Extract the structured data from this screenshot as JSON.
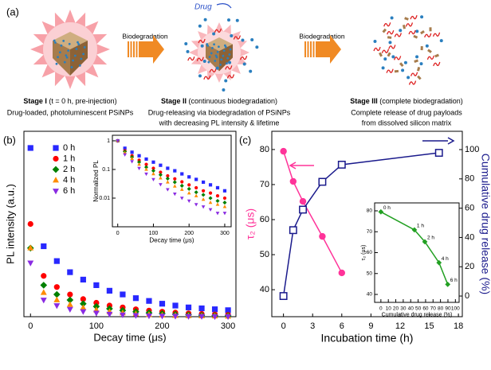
{
  "diagram": {
    "label": "(a)",
    "drug": "Drug",
    "arrows": [
      "Biodegradation",
      "Biodegradation"
    ],
    "stages": [
      {
        "name": "Stage I",
        "detail": "(t = 0 h, pre-injection)",
        "lines": [
          "Drug-loaded, photoluminescent PSiNPs"
        ]
      },
      {
        "name": "Stage II",
        "detail": "(continuous biodegradation)",
        "lines": [
          "Drug-releasing via biodegradation of PSiNPs",
          "with decreasing PL intensity & lifetime"
        ]
      },
      {
        "name": "Stage III",
        "detail": "(complete biodegradation)",
        "lines": [
          "Complete release of drug payloads",
          "from dissolved silicon matrix"
        ]
      }
    ]
  },
  "chart_data": [
    {
      "type": "scatter",
      "panel": "(b)",
      "xlabel": "Decay time (μs)",
      "ylabel": "PL intensity (a.u.)",
      "x": [
        0,
        20,
        40,
        60,
        80,
        100,
        120,
        140,
        160,
        180,
        200,
        220,
        240,
        260,
        280,
        300
      ],
      "xlim": [
        -10,
        312
      ],
      "xticks": [
        0,
        100,
        200,
        300
      ],
      "ylim": [
        0,
        1
      ],
      "legend": "upper left",
      "series": [
        {
          "name": "0 h",
          "color": "#2828ff",
          "marker": "square",
          "values": [
            0.91,
            0.38,
            0.3,
            0.24,
            0.2,
            0.17,
            0.14,
            0.12,
            0.1,
            0.085,
            0.07,
            0.06,
            0.05,
            0.045,
            0.04,
            0.035
          ]
        },
        {
          "name": "1 h",
          "color": "#ff0000",
          "marker": "circle",
          "values": [
            0.5,
            0.22,
            0.16,
            0.12,
            0.095,
            0.075,
            0.06,
            0.05,
            0.04,
            0.033,
            0.027,
            0.022,
            0.018,
            0.015,
            0.012,
            0.01
          ]
        },
        {
          "name": "2 h",
          "color": "#008000",
          "marker": "diamond",
          "values": [
            0.37,
            0.17,
            0.12,
            0.09,
            0.07,
            0.055,
            0.043,
            0.034,
            0.027,
            0.021,
            0.017,
            0.013,
            0.01,
            0.008,
            0.006,
            0.005
          ]
        },
        {
          "name": "4 h",
          "color": "#ff8c00",
          "marker": "triangle",
          "values": [
            0.37,
            0.13,
            0.09,
            0.065,
            0.048,
            0.036,
            0.027,
            0.02,
            0.015,
            0.011,
            0.008,
            0.006,
            0.005,
            0.004,
            0.003,
            0.002
          ]
        },
        {
          "name": "6 h",
          "color": "#8a2be2",
          "marker": "triangle-down",
          "values": [
            0.29,
            0.09,
            0.06,
            0.04,
            0.028,
            0.02,
            0.014,
            0.01,
            0.007,
            0.005,
            0.004,
            0.003,
            0.002,
            0.002,
            0.001,
            0.001
          ]
        }
      ]
    },
    {
      "type": "scatter",
      "xlabel": "Decay time (μs)",
      "ylabel": "Normalized PL",
      "log_y": true,
      "x": [
        0,
        20,
        40,
        60,
        80,
        100,
        120,
        140,
        160,
        180,
        200,
        220,
        240,
        260,
        280,
        300
      ],
      "xlim": [
        -15,
        318
      ],
      "xticks": [
        0,
        100,
        200,
        300
      ],
      "ylim": [
        0.001,
        1.56
      ],
      "yticks": [
        1,
        0.1,
        0.01
      ],
      "series": [
        {
          "color": "#2828ff",
          "marker": "square",
          "values": [
            1,
            0.55,
            0.4,
            0.3,
            0.23,
            0.18,
            0.14,
            0.11,
            0.09,
            0.07,
            0.055,
            0.045,
            0.036,
            0.029,
            0.023,
            0.018
          ]
        },
        {
          "color": "#ff0000",
          "marker": "circle",
          "values": [
            1,
            0.45,
            0.3,
            0.21,
            0.15,
            0.11,
            0.08,
            0.06,
            0.047,
            0.037,
            0.029,
            0.023,
            0.018,
            0.015,
            0.012,
            0.01
          ]
        },
        {
          "color": "#008000",
          "marker": "diamond",
          "values": [
            1,
            0.42,
            0.27,
            0.18,
            0.12,
            0.09,
            0.065,
            0.048,
            0.036,
            0.027,
            0.021,
            0.016,
            0.013,
            0.01,
            0.008,
            0.007
          ]
        },
        {
          "color": "#ff8c00",
          "marker": "triangle",
          "values": [
            1,
            0.38,
            0.24,
            0.15,
            0.1,
            0.07,
            0.05,
            0.036,
            0.026,
            0.02,
            0.015,
            0.012,
            0.009,
            0.007,
            0.006,
            0.005
          ]
        },
        {
          "color": "#8a2be2",
          "marker": "triangle-down",
          "values": [
            1,
            0.33,
            0.19,
            0.11,
            0.07,
            0.045,
            0.03,
            0.02,
            0.014,
            0.01,
            0.008,
            0.006,
            0.005,
            0.004,
            0.003,
            0.003
          ]
        }
      ]
    },
    {
      "type": "line",
      "panel": "(c)",
      "xlabel": "Incubation time (h)",
      "ylabel": "τ₂ (μs)",
      "ylabel_color": "#ff3399",
      "y2label": "Cumulative drug release (%)",
      "y2label_color": "#1a1a8c",
      "xlim": [
        -1.2,
        18.4
      ],
      "xticks": [
        0,
        3,
        6,
        9,
        12,
        15,
        18
      ],
      "ylim": [
        32.3,
        85.2
      ],
      "yticks": [
        40,
        50,
        60,
        70,
        80
      ],
      "y2lim": [
        -14.1,
        112.5
      ],
      "y2ticks": [
        0,
        20,
        40,
        60,
        80,
        100
      ],
      "series": [
        {
          "axis": "y",
          "color": "#ff3399",
          "marker": "circle",
          "x": [
            0,
            1,
            2,
            4,
            6
          ],
          "values": [
            79.5,
            70.9,
            65.2,
            55.2,
            44.8
          ]
        },
        {
          "axis": "y2",
          "color": "#1a1a8c",
          "marker": "square-open",
          "x": [
            0,
            1,
            2,
            4,
            6,
            16
          ],
          "values": [
            0,
            45,
            59,
            78,
            89.7,
            97.8
          ]
        }
      ]
    },
    {
      "type": "line",
      "xlabel": "Cumulative drug release (%)",
      "ylabel": "τ₂ (μs)",
      "xlim": [
        -8.4,
        105
      ],
      "xticks": [
        0,
        10,
        20,
        30,
        40,
        50,
        60,
        70,
        80,
        90,
        100
      ],
      "ylim": [
        36.2,
        83.8
      ],
      "yticks": [
        40,
        50,
        60,
        70,
        80
      ],
      "series": [
        {
          "color": "#22a022",
          "marker": "diamond",
          "x": [
            0,
            45,
            59,
            78,
            89.7
          ],
          "values": [
            79.5,
            70.9,
            65.2,
            55.2,
            44.8
          ],
          "point_labels": [
            "0 h",
            "1 h",
            "2 h",
            "4 h",
            "6 h"
          ]
        }
      ]
    }
  ]
}
